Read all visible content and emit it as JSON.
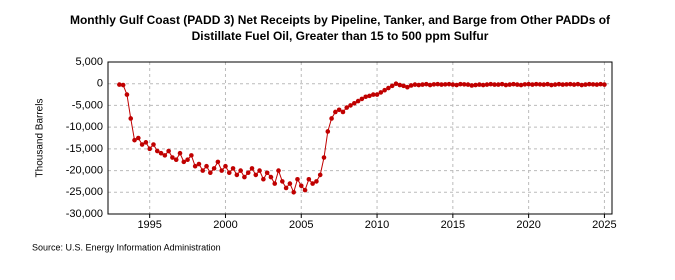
{
  "chart_data": {
    "type": "line",
    "title": [
      "Monthly Gulf Coast (PADD 3) Net Receipts by Pipeline, Tanker, and Barge from Other PADDs of",
      "Distillate Fuel Oil, Greater than 15 to 500 ppm Sulfur"
    ],
    "y_label": "Thousand Barrels",
    "source": "Source: U.S. Energy Information Administration",
    "grid": true,
    "xlim": [
      1992.25,
      2025.5
    ],
    "xticks": [
      1995,
      2000,
      2005,
      2010,
      2015,
      2020,
      2025
    ],
    "ylim": [
      -30000,
      5000
    ],
    "yticks": [
      {
        "value": -30000,
        "label": "-30,000"
      },
      {
        "value": -25000,
        "label": "-25,000"
      },
      {
        "value": -20000,
        "label": "-20,000"
      },
      {
        "value": -15000,
        "label": "-15,000"
      },
      {
        "value": -10000,
        "label": "-10,000"
      },
      {
        "value": -5000,
        "label": "-5,000"
      },
      0,
      {
        "value": 5000,
        "label": "5,000"
      }
    ],
    "x": [
      1993,
      1993.25,
      1993.5,
      1993.75,
      1994,
      1994.25,
      1994.5,
      1994.75,
      1995,
      1995.25,
      1995.5,
      1995.75,
      1996,
      1996.25,
      1996.5,
      1996.75,
      1997,
      1997.25,
      1997.5,
      1997.75,
      1998,
      1998.25,
      1998.5,
      1998.75,
      1999,
      1999.25,
      1999.5,
      1999.75,
      2000,
      2000.25,
      2000.5,
      2000.75,
      2001,
      2001.25,
      2001.5,
      2001.75,
      2002,
      2002.25,
      2002.5,
      2002.75,
      2003,
      2003.25,
      2003.5,
      2003.75,
      2004,
      2004.25,
      2004.5,
      2004.75,
      2005,
      2005.25,
      2005.5,
      2005.75,
      2006,
      2006.25,
      2006.5,
      2006.75,
      2007,
      2007.25,
      2007.5,
      2007.75,
      2008,
      2008.25,
      2008.5,
      2008.75,
      2009,
      2009.25,
      2009.5,
      2009.75,
      2010,
      2010.25,
      2010.5,
      2010.75,
      2011,
      2011.25,
      2011.5,
      2011.75,
      2012,
      2012.25,
      2012.5,
      2012.75,
      2013,
      2013.25,
      2013.5,
      2013.75,
      2014,
      2014.25,
      2014.5,
      2014.75,
      2015,
      2015.25,
      2015.5,
      2015.75,
      2016,
      2016.25,
      2016.5,
      2016.75,
      2017,
      2017.25,
      2017.5,
      2017.75,
      2018,
      2018.25,
      2018.5,
      2018.75,
      2019,
      2019.25,
      2019.5,
      2019.75,
      2020,
      2020.25,
      2020.5,
      2020.75,
      2021,
      2021.25,
      2021.5,
      2021.75,
      2022,
      2022.25,
      2022.5,
      2022.75,
      2023,
      2023.25,
      2023.5,
      2023.75,
      2024,
      2024.25,
      2024.5,
      2024.75,
      2025
    ],
    "series": [
      {
        "color": "#c00000",
        "values": [
          -200,
          -300,
          -2500,
          -8000,
          -13000,
          -12500,
          -14000,
          -13500,
          -15000,
          -14000,
          -15500,
          -16000,
          -16500,
          -15500,
          -17000,
          -17500,
          -16000,
          -18000,
          -17500,
          -16500,
          -19000,
          -18500,
          -20000,
          -19000,
          -20500,
          -19500,
          -18000,
          -20000,
          -19000,
          -20500,
          -19500,
          -21000,
          -20000,
          -21500,
          -20500,
          -19500,
          -21000,
          -20000,
          -22000,
          -20500,
          -21500,
          -23000,
          -20000,
          -22500,
          -24000,
          -23000,
          -25000,
          -22000,
          -23500,
          -24500,
          -22000,
          -23000,
          -22500,
          -21000,
          -17000,
          -11000,
          -8000,
          -6500,
          -6000,
          -6500,
          -5500,
          -5000,
          -4500,
          -4000,
          -3500,
          -3000,
          -2800,
          -2500,
          -2500,
          -2000,
          -1500,
          -1000,
          -500,
          0,
          -300,
          -500,
          -800,
          -400,
          -200,
          -300,
          -200,
          -100,
          -300,
          -150,
          -100,
          -200,
          -150,
          -100,
          -200,
          -300,
          -100,
          -150,
          -200,
          -400,
          -300,
          -200,
          -300,
          -200,
          -100,
          -200,
          -200,
          -100,
          -300,
          -200,
          -100,
          -200,
          -300,
          -150,
          -100,
          -200,
          -100,
          -150,
          -200,
          -100,
          -300,
          -200,
          -100,
          -200,
          -150,
          -100,
          -200,
          -100,
          -300,
          -200,
          -100,
          -150,
          -200,
          -100,
          -200
        ]
      }
    ]
  }
}
